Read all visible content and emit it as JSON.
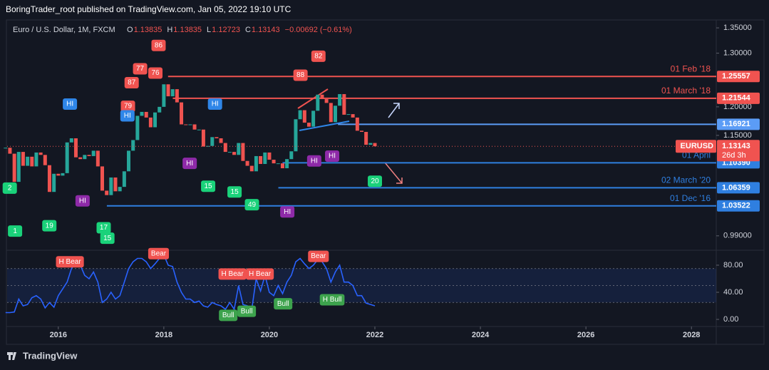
{
  "header": {
    "publisher": "BoringTrader_root published on TradingView.com, Jan 05, 2022 19:10 UTC"
  },
  "footer": {
    "brand": "TradingView"
  },
  "chart_data": {
    "type": "candlestick",
    "symbol": "Euro / U.S. Dollar, 1M, FXCM",
    "ohlc": [
      {
        "label": "O",
        "value": "1.13835"
      },
      {
        "label": "H",
        "value": "1.13835"
      },
      {
        "label": "L",
        "value": "1.12723"
      },
      {
        "label": "C",
        "value": "1.13143"
      }
    ],
    "change": "−0.00692 (−0.61%)",
    "log_scale": true,
    "up_color": "#26a69a",
    "down_color": "#ef5350",
    "xlim": [
      2015.03,
      2028.47
    ],
    "xticks": [
      2016,
      2018,
      2020,
      2022,
      2024,
      2026,
      2028
    ],
    "ylim": [
      0.97,
      1.366
    ],
    "yticks": [
      {
        "value": 1.35,
        "label": "1.35000"
      },
      {
        "value": 1.3,
        "label": "1.30000"
      },
      {
        "value": 1.2,
        "label": "1.20000"
      },
      {
        "value": 1.15,
        "label": "1.15000"
      },
      {
        "value": 0.99,
        "label": "0.99000"
      }
    ],
    "x": [
      2015,
      2015.083,
      2015.167,
      2015.25,
      2015.333,
      2015.417,
      2015.5,
      2015.583,
      2015.667,
      2015.75,
      2015.833,
      2015.917,
      2016,
      2016.083,
      2016.167,
      2016.25,
      2016.333,
      2016.417,
      2016.5,
      2016.583,
      2016.667,
      2016.75,
      2016.833,
      2016.917,
      2017,
      2017.083,
      2017.167,
      2017.25,
      2017.333,
      2017.417,
      2017.5,
      2017.583,
      2017.667,
      2017.75,
      2017.833,
      2017.917,
      2018,
      2018.083,
      2018.167,
      2018.25,
      2018.333,
      2018.417,
      2018.5,
      2018.583,
      2018.667,
      2018.75,
      2018.833,
      2018.917,
      2019,
      2019.083,
      2019.167,
      2019.25,
      2019.333,
      2019.417,
      2019.5,
      2019.583,
      2019.667,
      2019.75,
      2019.833,
      2019.917,
      2020,
      2020.083,
      2020.167,
      2020.25,
      2020.333,
      2020.417,
      2020.5,
      2020.583,
      2020.667,
      2020.75,
      2020.833,
      2020.917,
      2021,
      2021.083,
      2021.167,
      2021.25,
      2021.333,
      2021.417,
      2021.5,
      2021.583,
      2021.667,
      2021.75,
      2021.833,
      2021.917,
      2022
    ],
    "close": [
      1.129,
      1.119,
      1.073,
      1.122,
      1.099,
      1.114,
      1.098,
      1.121,
      1.117,
      1.1,
      1.057,
      1.086,
      1.083,
      1.087,
      1.138,
      1.145,
      1.113,
      1.11,
      1.117,
      1.115,
      1.124,
      1.098,
      1.059,
      1.052,
      1.08,
      1.058,
      1.065,
      1.09,
      1.124,
      1.142,
      1.184,
      1.191,
      1.181,
      1.164,
      1.19,
      1.2,
      1.241,
      1.219,
      1.232,
      1.208,
      1.169,
      1.168,
      1.169,
      1.16,
      1.16,
      1.131,
      1.132,
      1.147,
      1.145,
      1.137,
      1.122,
      1.122,
      1.117,
      1.137,
      1.107,
      1.099,
      1.09,
      1.115,
      1.102,
      1.121,
      1.109,
      1.103,
      1.103,
      1.095,
      1.11,
      1.123,
      1.178,
      1.194,
      1.172,
      1.165,
      1.193,
      1.222,
      1.214,
      1.207,
      1.173,
      1.202,
      1.223,
      1.186,
      1.187,
      1.181,
      1.158,
      1.156,
      1.134,
      1.137,
      1.13143
    ],
    "price_lines": [
      {
        "value": 1.25557,
        "value_label": "1.25557",
        "date_label": "01 Feb '18",
        "color": "#f05350",
        "from": 2018.08
      },
      {
        "value": 1.21544,
        "value_label": "1.21544",
        "date_label": "01 March '18",
        "color": "#f05350",
        "from": 2018.17
      },
      {
        "value": 1.16921,
        "value_label": "1.16921",
        "color": "#5b9cf6",
        "from": 2021.3
      },
      {
        "value": 1.1039,
        "value_label": "1.10390",
        "date_label": "01 April",
        "color": "#2f7fe0",
        "from": 2020.25
      },
      {
        "value": 1.06359,
        "value_label": "1.06359",
        "date_label": "02 March '20",
        "color": "#2f7fe0",
        "from": 2020.17
      },
      {
        "value": 1.03522,
        "value_label": "1.03522",
        "date_label": "01 Dec '16",
        "color": "#2f7fe0",
        "from": 2016.92
      }
    ],
    "last": {
      "value": 1.13143,
      "value_label": "1.13143",
      "symbol": "EURUSD",
      "countdown": "26d 3h",
      "color": "#f05350"
    },
    "markers": [
      {
        "text": "86",
        "x": 2017.9,
        "y": 1.315,
        "color": "#f05350"
      },
      {
        "text": "77",
        "x": 2017.55,
        "y": 1.27,
        "color": "#f05350"
      },
      {
        "text": "76",
        "x": 2017.84,
        "y": 1.262,
        "color": "#f05350"
      },
      {
        "text": "87",
        "x": 2017.39,
        "y": 1.244,
        "color": "#f05350"
      },
      {
        "text": "79",
        "x": 2017.32,
        "y": 1.201,
        "color": "#f05350"
      },
      {
        "text": "82",
        "x": 2020.93,
        "y": 1.294,
        "color": "#f05350"
      },
      {
        "text": "88",
        "x": 2020.59,
        "y": 1.258,
        "color": "#f05350"
      },
      {
        "text": "HI",
        "x": 2016.22,
        "y": 1.205,
        "color": "#2f86e8"
      },
      {
        "text": "HI",
        "x": 2017.31,
        "y": 1.184,
        "color": "#2f86e8"
      },
      {
        "text": "HI",
        "x": 2018.97,
        "y": 1.205,
        "color": "#2f86e8"
      },
      {
        "text": "HI",
        "x": 2018.49,
        "y": 1.103,
        "color": "#8e2aa8"
      },
      {
        "text": "HI",
        "x": 2016.46,
        "y": 1.043,
        "color": "#8e2aa8"
      },
      {
        "text": "HI",
        "x": 2020.85,
        "y": 1.107,
        "color": "#8e2aa8"
      },
      {
        "text": "HI",
        "x": 2021.19,
        "y": 1.115,
        "color": "#8e2aa8"
      },
      {
        "text": "HI",
        "x": 2020.34,
        "y": 1.026,
        "color": "#8e2aa8"
      },
      {
        "text": "2",
        "x": 2015.08,
        "y": 1.063,
        "color": "#1ad27a"
      },
      {
        "text": "1",
        "x": 2015.18,
        "y": 0.997,
        "color": "#1ad27a"
      },
      {
        "text": "19",
        "x": 2015.83,
        "y": 1.005,
        "color": "#1ad27a"
      },
      {
        "text": "17",
        "x": 2016.86,
        "y": 1.002,
        "color": "#1ad27a"
      },
      {
        "text": "15",
        "x": 2016.93,
        "y": 0.9865,
        "color": "#1ad27a"
      },
      {
        "text": "15",
        "x": 2018.84,
        "y": 1.066,
        "color": "#1ad27a"
      },
      {
        "text": "15",
        "x": 2019.34,
        "y": 1.057,
        "color": "#1ad27a"
      },
      {
        "text": "49",
        "x": 2019.67,
        "y": 1.037,
        "color": "#1ad27a"
      },
      {
        "text": "20",
        "x": 2022.0,
        "y": 1.074,
        "color": "#1ad27a"
      }
    ],
    "oscillator": {
      "color": "#2962ff",
      "ylim": [
        -10.5,
        101
      ],
      "yticks": [
        {
          "value": 80,
          "label": "80.00"
        },
        {
          "value": 40,
          "label": "40.00"
        },
        {
          "value": 0,
          "label": "0.00"
        }
      ],
      "bands": [
        25,
        50,
        75
      ],
      "values": [
        10,
        10,
        11,
        30,
        20,
        22,
        32,
        35,
        30,
        17,
        25,
        18,
        35,
        45,
        55,
        75,
        85,
        80,
        65,
        60,
        70,
        55,
        25,
        30,
        40,
        30,
        35,
        55,
        75,
        85,
        90,
        90,
        85,
        75,
        82,
        90,
        95,
        80,
        78,
        55,
        40,
        30,
        30,
        25,
        27,
        20,
        18,
        25,
        22,
        20,
        15,
        25,
        15,
        50,
        22,
        20,
        15,
        60,
        42,
        65,
        40,
        35,
        50,
        38,
        55,
        65,
        85,
        90,
        82,
        75,
        80,
        88,
        85,
        75,
        55,
        70,
        80,
        55,
        55,
        50,
        35,
        35,
        24,
        22,
        20
      ],
      "markers": [
        {
          "text": "H Bear",
          "x": 2016.22,
          "y": 85,
          "color": "#f05350"
        },
        {
          "text": "Bear",
          "x": 2017.9,
          "y": 97,
          "color": "#f05350"
        },
        {
          "text": "H Bear",
          "x": 2019.3,
          "y": 67,
          "color": "#f05350"
        },
        {
          "text": "H Bear",
          "x": 2019.82,
          "y": 67,
          "color": "#f05350"
        },
        {
          "text": "Bear",
          "x": 2020.93,
          "y": 93,
          "color": "#f05350"
        },
        {
          "text": "Bull",
          "x": 2019.22,
          "y": 6,
          "color": "#3da34d"
        },
        {
          "text": "Bull",
          "x": 2019.57,
          "y": 12,
          "color": "#3da34d"
        },
        {
          "text": "Bull",
          "x": 2020.26,
          "y": 23,
          "color": "#3da34d"
        },
        {
          "text": "H Bull",
          "x": 2021.19,
          "y": 29,
          "color": "#3da34d"
        }
      ]
    }
  }
}
